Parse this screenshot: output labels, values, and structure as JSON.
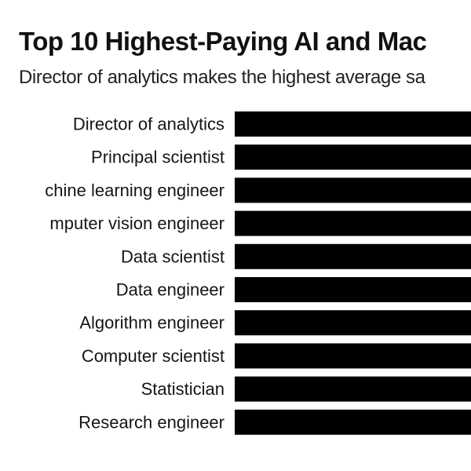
{
  "chart_data": {
    "type": "bar",
    "orientation": "horizontal",
    "title": "Top 10 Highest-Paying AI and Mac",
    "subtitle": "Director of analytics makes the highest average sa",
    "categories": [
      "Director of analytics",
      "Principal scientist",
      "chine learning engineer",
      "mputer vision engineer",
      "Data scientist",
      "Data engineer",
      "Algorithm engineer",
      "Computer scientist",
      "Statistician",
      "Research engineer"
    ],
    "bar_color": "#000000",
    "grid": false,
    "legend": "none"
  }
}
